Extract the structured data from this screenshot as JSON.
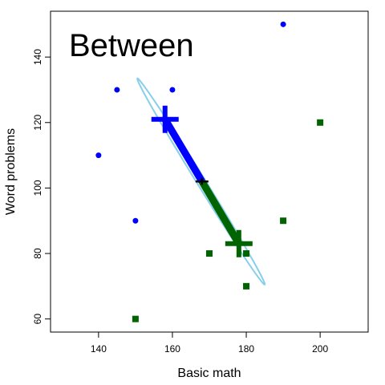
{
  "chart_data": {
    "type": "scatter",
    "title": "Between",
    "xlabel": "Basic math",
    "ylabel": "Word problems",
    "xlim": [
      127,
      213
    ],
    "ylim": [
      56,
      154
    ],
    "xticks": [
      140,
      160,
      180,
      200
    ],
    "yticks": [
      60,
      80,
      100,
      120,
      140
    ],
    "grid": false,
    "colors": {
      "group1": "#0000ff",
      "group2": "#006400",
      "ellipse": "#87ceeb",
      "grand_mean": "#000000"
    },
    "series": [
      {
        "marker": "circle",
        "color": "#0000ff",
        "points": [
          [
            190,
            150
          ],
          [
            145,
            130
          ],
          [
            160,
            130
          ],
          [
            140,
            110
          ],
          [
            150,
            90
          ]
        ],
        "mean": [
          158,
          121
        ]
      },
      {
        "marker": "square",
        "color": "#006400",
        "points": [
          [
            200,
            120
          ],
          [
            190,
            90
          ],
          [
            170,
            80
          ],
          [
            180,
            80
          ],
          [
            180,
            70
          ],
          [
            150,
            60
          ]
        ],
        "mean": [
          178,
          83
        ]
      }
    ],
    "grand_mean": [
      168,
      102
    ],
    "ellipse": {
      "center": [
        168,
        102
      ],
      "endpoint_a": [
        150.5,
        133.5
      ],
      "endpoint_b": [
        185,
        70.5
      ],
      "minor_fraction": 0.035
    }
  }
}
